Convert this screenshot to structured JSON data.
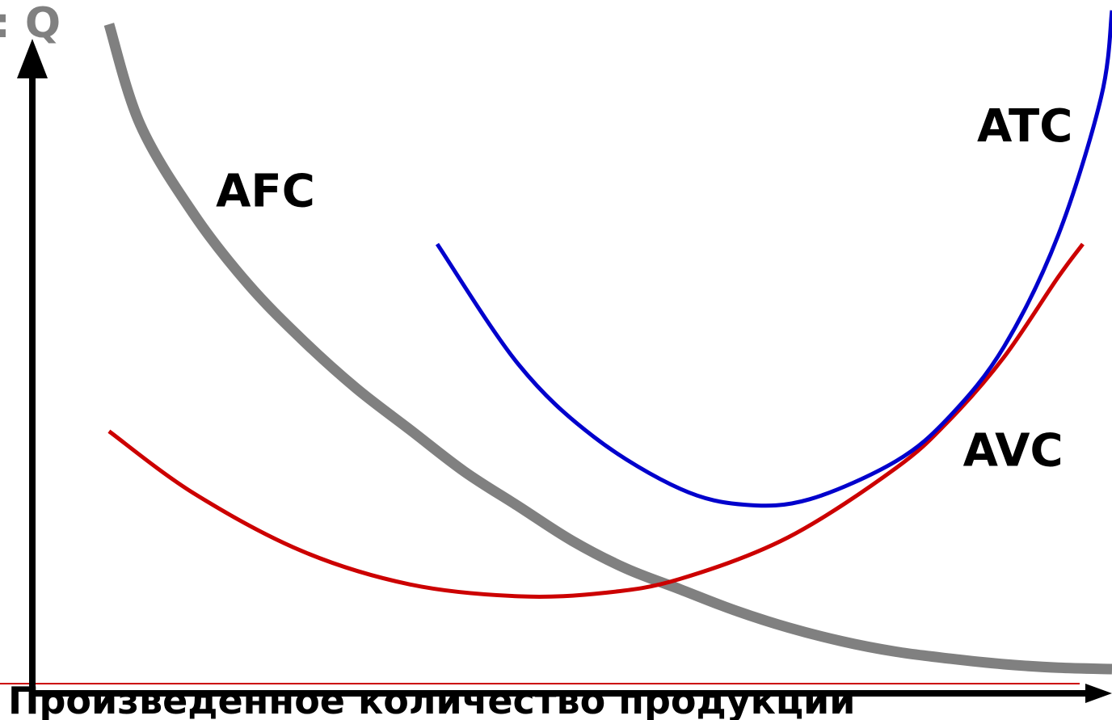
{
  "chart_data": {
    "type": "line",
    "title": "",
    "xlabel": "Произведенное количество продукции",
    "ylabel": ": Q",
    "xlim": [
      0,
      100
    ],
    "ylim": [
      0,
      100
    ],
    "grid": false,
    "series": [
      {
        "name": "AFC",
        "color": "#808080",
        "x": [
          7.1,
          10,
          15,
          20,
          25,
          30,
          35,
          40,
          45,
          50,
          55,
          60,
          65,
          70,
          75,
          80,
          85,
          90,
          95,
          100
        ],
        "y": [
          96.5,
          82,
          69,
          59,
          51,
          44,
          38,
          32,
          27,
          22,
          18,
          15,
          12,
          9.5,
          7.5,
          6,
          5,
          4.2,
          3.7,
          3.5
        ]
      },
      {
        "name": "AVC",
        "color": "#cc0000",
        "x": [
          7.1,
          15,
          25,
          35,
          45,
          53,
          60,
          70,
          80,
          85,
          90,
          95,
          97.3
        ],
        "y": [
          37.8,
          28.8,
          20.5,
          15.7,
          14,
          14.5,
          16.5,
          22.5,
          32.5,
          39.5,
          48.5,
          60,
          64.8
        ]
      },
      {
        "name": "ATC",
        "color": "#0000cc",
        "x": [
          37.5,
          45,
          52,
          60,
          66,
          72,
          80,
          85,
          90,
          95,
          99,
          100
        ],
        "y": [
          64.8,
          47.5,
          37,
          29.5,
          27.2,
          28,
          33.5,
          40,
          50,
          66,
          86,
          98.5
        ]
      }
    ],
    "annotations": [
      {
        "text": "AFC",
        "x": 17,
        "y": 70.2
      },
      {
        "text": "ATC",
        "x": 87.5,
        "y": 79.6
      },
      {
        "text": "AVC",
        "x": 86.2,
        "y": 32.8
      }
    ]
  }
}
